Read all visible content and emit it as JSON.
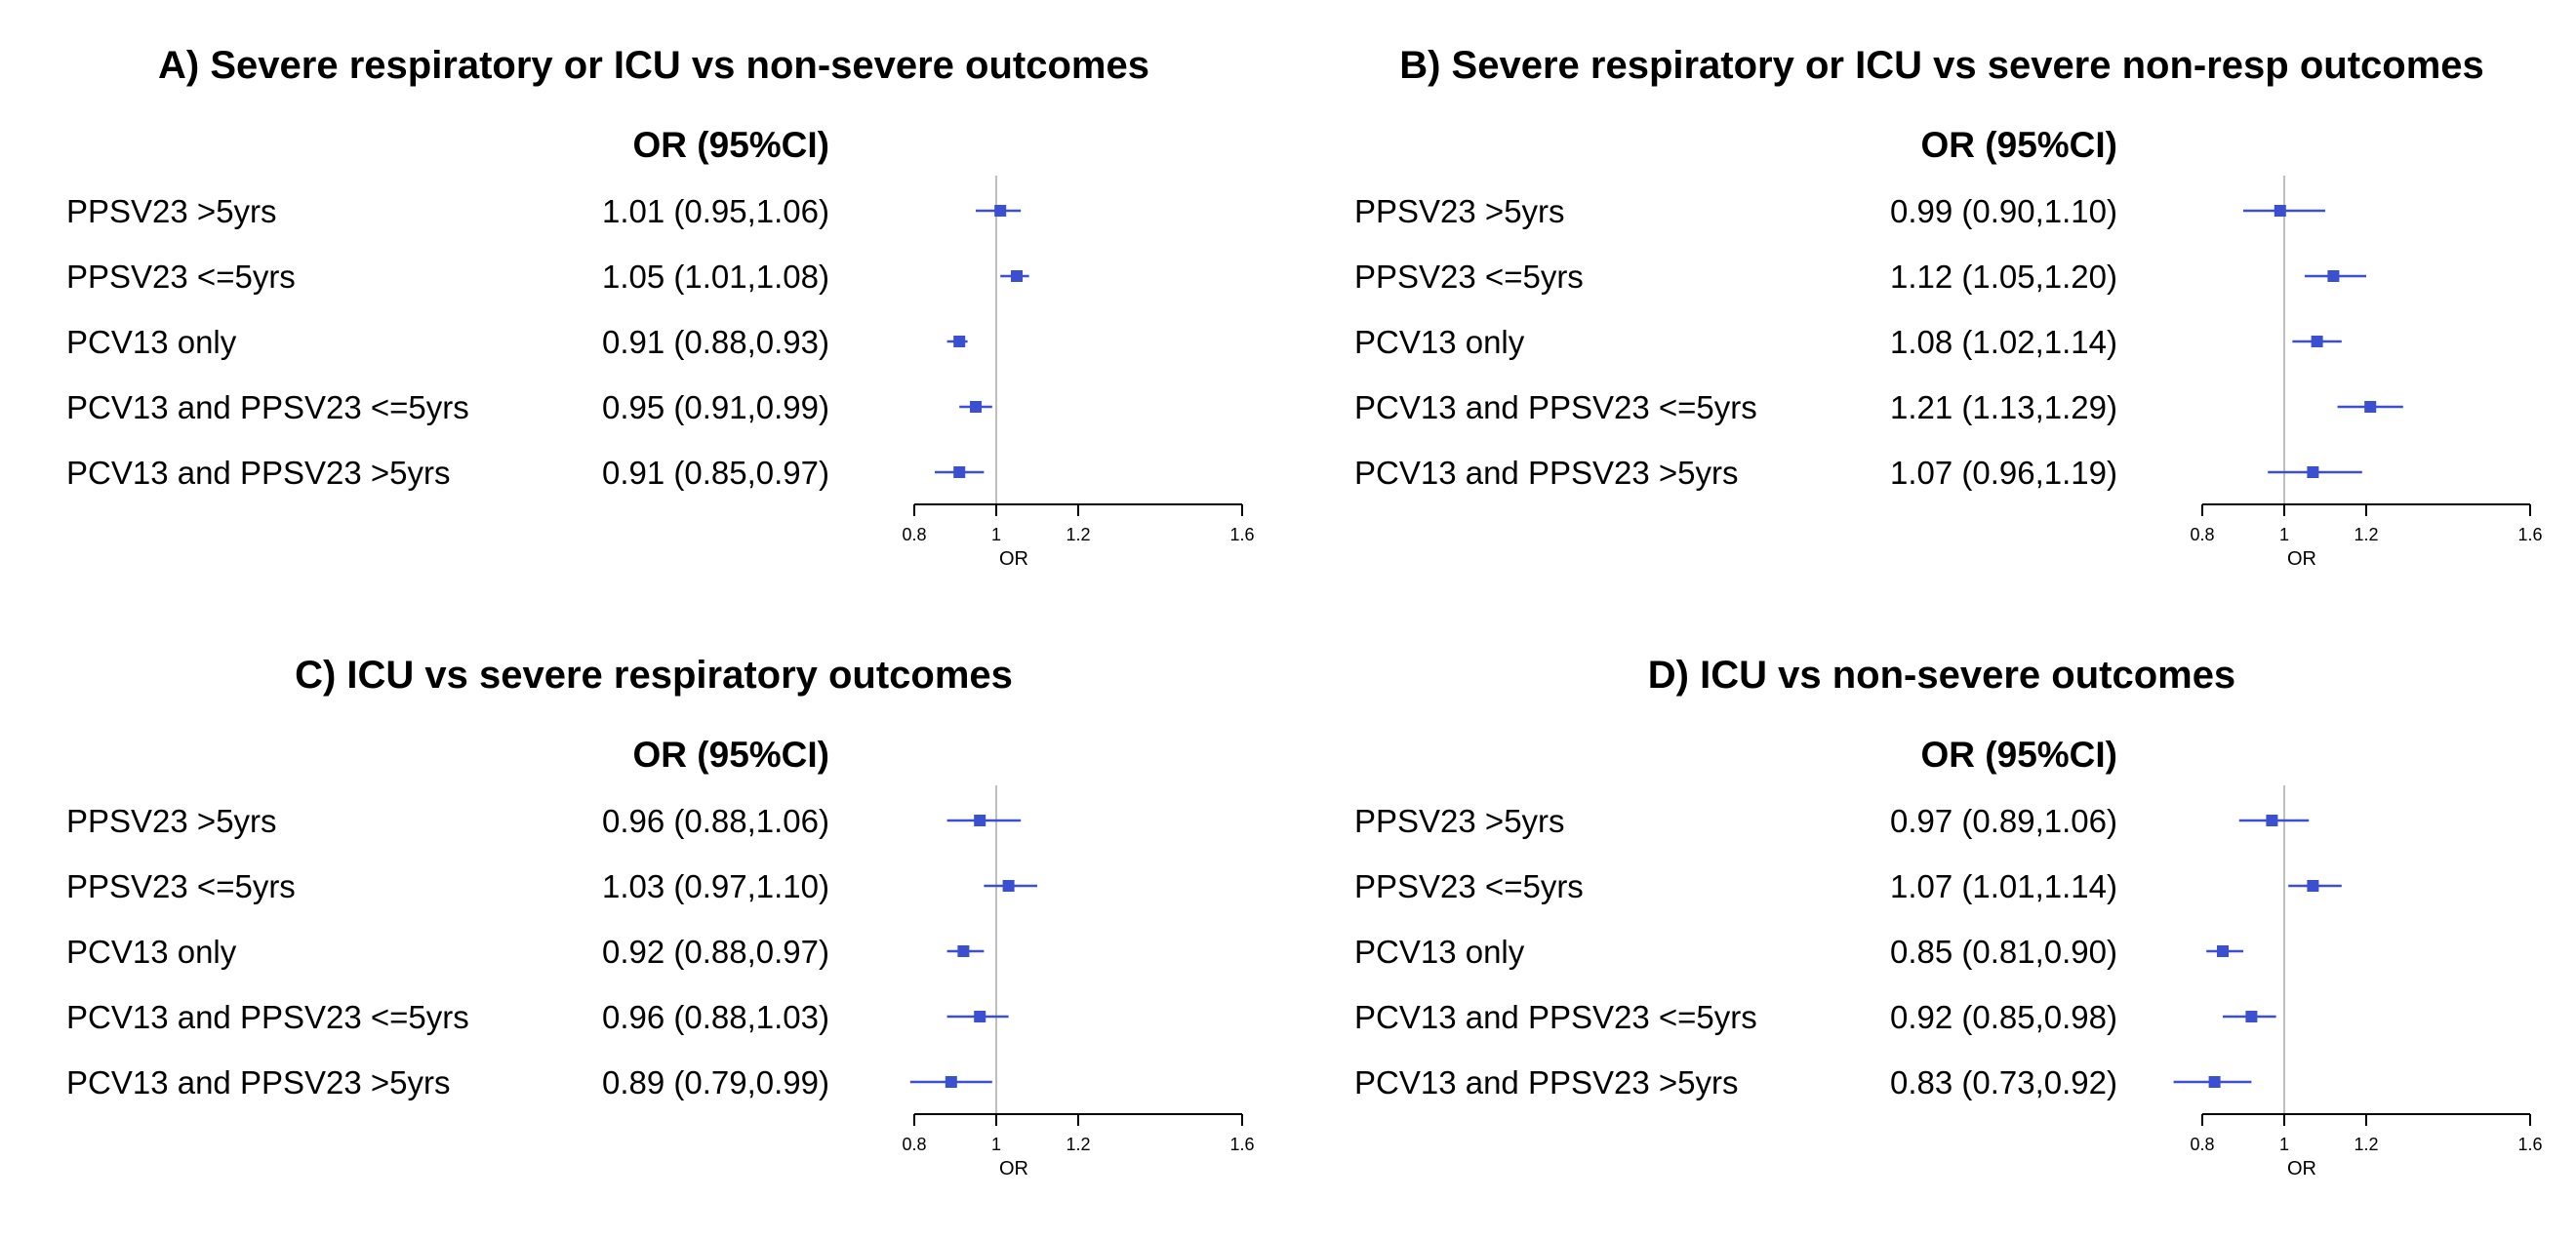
{
  "chart_data": [
    {
      "type": "forest",
      "title": "A) Severe respiratory or ICU vs non-severe outcomes",
      "column_header": "OR (95%CI)",
      "xlabel": "OR",
      "xlim": [
        0.8,
        1.6
      ],
      "xticks": [
        "0.8",
        "1",
        "1.2",
        "1.6"
      ],
      "reference_line": 1,
      "rows": [
        {
          "label": "PPSV23 >5yrs",
          "or_text": "1.01 (0.95,1.06)",
          "or": 1.01,
          "lo": 0.95,
          "hi": 1.06
        },
        {
          "label": "PPSV23 <=5yrs",
          "or_text": "1.05 (1.01,1.08)",
          "or": 1.05,
          "lo": 1.01,
          "hi": 1.08
        },
        {
          "label": "PCV13 only",
          "or_text": "0.91 (0.88,0.93)",
          "or": 0.91,
          "lo": 0.88,
          "hi": 0.93
        },
        {
          "label": "PCV13 and PPSV23 <=5yrs",
          "or_text": "0.95 (0.91,0.99)",
          "or": 0.95,
          "lo": 0.91,
          "hi": 0.99
        },
        {
          "label": "PCV13 and PPSV23 >5yrs",
          "or_text": "0.91 (0.85,0.97)",
          "or": 0.91,
          "lo": 0.85,
          "hi": 0.97
        }
      ]
    },
    {
      "type": "forest",
      "title": "B) Severe respiratory or ICU vs severe non-resp outcomes",
      "column_header": "OR (95%CI)",
      "xlabel": "OR",
      "xlim": [
        0.8,
        1.6
      ],
      "xticks": [
        "0.8",
        "1",
        "1.2",
        "1.6"
      ],
      "reference_line": 1,
      "rows": [
        {
          "label": "PPSV23 >5yrs",
          "or_text": "0.99 (0.90,1.10)",
          "or": 0.99,
          "lo": 0.9,
          "hi": 1.1
        },
        {
          "label": "PPSV23 <=5yrs",
          "or_text": "1.12 (1.05,1.20)",
          "or": 1.12,
          "lo": 1.05,
          "hi": 1.2
        },
        {
          "label": "PCV13 only",
          "or_text": "1.08 (1.02,1.14)",
          "or": 1.08,
          "lo": 1.02,
          "hi": 1.14
        },
        {
          "label": "PCV13 and PPSV23 <=5yrs",
          "or_text": "1.21 (1.13,1.29)",
          "or": 1.21,
          "lo": 1.13,
          "hi": 1.29
        },
        {
          "label": "PCV13 and PPSV23 >5yrs",
          "or_text": "1.07 (0.96,1.19)",
          "or": 1.07,
          "lo": 0.96,
          "hi": 1.19
        }
      ]
    },
    {
      "type": "forest",
      "title": "C) ICU vs severe respiratory outcomes",
      "column_header": "OR (95%CI)",
      "xlabel": "OR",
      "xlim": [
        0.8,
        1.6
      ],
      "xticks": [
        "0.8",
        "1",
        "1.2",
        "1.6"
      ],
      "reference_line": 1,
      "rows": [
        {
          "label": "PPSV23 >5yrs",
          "or_text": "0.96 (0.88,1.06)",
          "or": 0.96,
          "lo": 0.88,
          "hi": 1.06
        },
        {
          "label": "PPSV23 <=5yrs",
          "or_text": "1.03 (0.97,1.10)",
          "or": 1.03,
          "lo": 0.97,
          "hi": 1.1
        },
        {
          "label": "PCV13 only",
          "or_text": "0.92 (0.88,0.97)",
          "or": 0.92,
          "lo": 0.88,
          "hi": 0.97
        },
        {
          "label": "PCV13 and PPSV23 <=5yrs",
          "or_text": "0.96 (0.88,1.03)",
          "or": 0.96,
          "lo": 0.88,
          "hi": 1.03
        },
        {
          "label": "PCV13 and PPSV23 >5yrs",
          "or_text": "0.89 (0.79,0.99)",
          "or": 0.89,
          "lo": 0.79,
          "hi": 0.99
        }
      ]
    },
    {
      "type": "forest",
      "title": "D) ICU vs non-severe outcomes",
      "column_header": "OR (95%CI)",
      "xlabel": "OR",
      "xlim": [
        0.8,
        1.6
      ],
      "xticks": [
        "0.8",
        "1",
        "1.2",
        "1.6"
      ],
      "reference_line": 1,
      "rows": [
        {
          "label": "PPSV23 >5yrs",
          "or_text": "0.97 (0.89,1.06)",
          "or": 0.97,
          "lo": 0.89,
          "hi": 1.06
        },
        {
          "label": "PPSV23 <=5yrs",
          "or_text": "1.07 (1.01,1.14)",
          "or": 1.07,
          "lo": 1.01,
          "hi": 1.14
        },
        {
          "label": "PCV13 only",
          "or_text": "0.85 (0.81,0.90)",
          "or": 0.85,
          "lo": 0.81,
          "hi": 0.9
        },
        {
          "label": "PCV13 and PPSV23 <=5yrs",
          "or_text": "0.92 (0.85,0.98)",
          "or": 0.92,
          "lo": 0.85,
          "hi": 0.98
        },
        {
          "label": "PCV13 and PPSV23 >5yrs",
          "or_text": "0.83 (0.73,0.92)",
          "or": 0.83,
          "lo": 0.73,
          "hi": 0.92
        }
      ]
    }
  ],
  "colors": {
    "marker": "#3b4fd1",
    "ci_line": "#3b4fd1",
    "reference_line": "#bfbfbf",
    "axis": "#000000"
  }
}
